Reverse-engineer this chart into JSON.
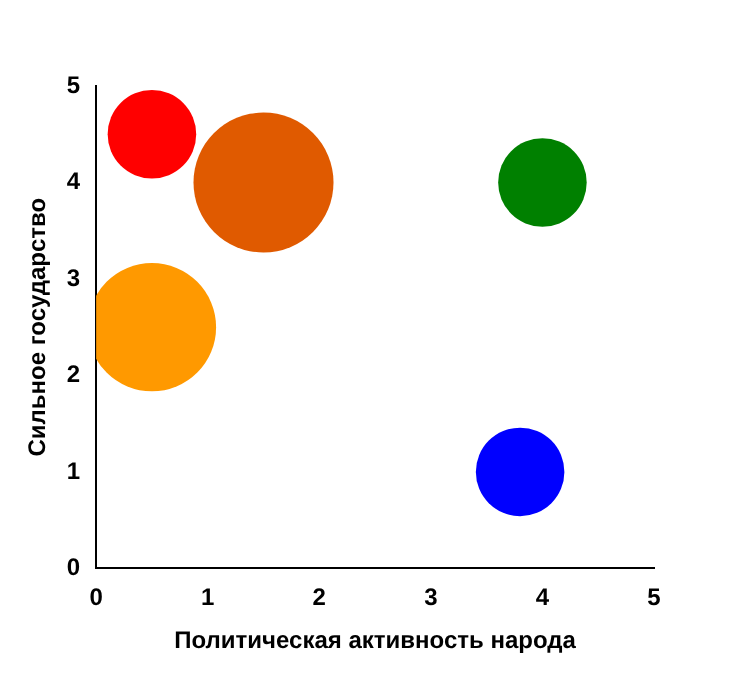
{
  "chart_data": {
    "type": "bubble",
    "xlabel": "Политическая активность народа",
    "ylabel": "Сильное государство",
    "x": [
      0.5,
      1.5,
      4,
      0.5,
      3.8
    ],
    "values": [
      4.5,
      4,
      4,
      2.5,
      1
    ],
    "sizes": [
      0.4,
      1,
      0.4,
      0.84,
      0.4
    ],
    "colors": [
      "#ff0000",
      "#e05a00",
      "#008000",
      "#ff9900",
      "#0000ff"
    ],
    "xlim": [
      0,
      5
    ],
    "ylim": [
      0,
      5
    ],
    "xticks": [
      0,
      1,
      2,
      3,
      4,
      5
    ],
    "yticks": [
      0,
      1,
      2,
      3,
      4,
      5
    ],
    "grid": false,
    "legend": false
  }
}
